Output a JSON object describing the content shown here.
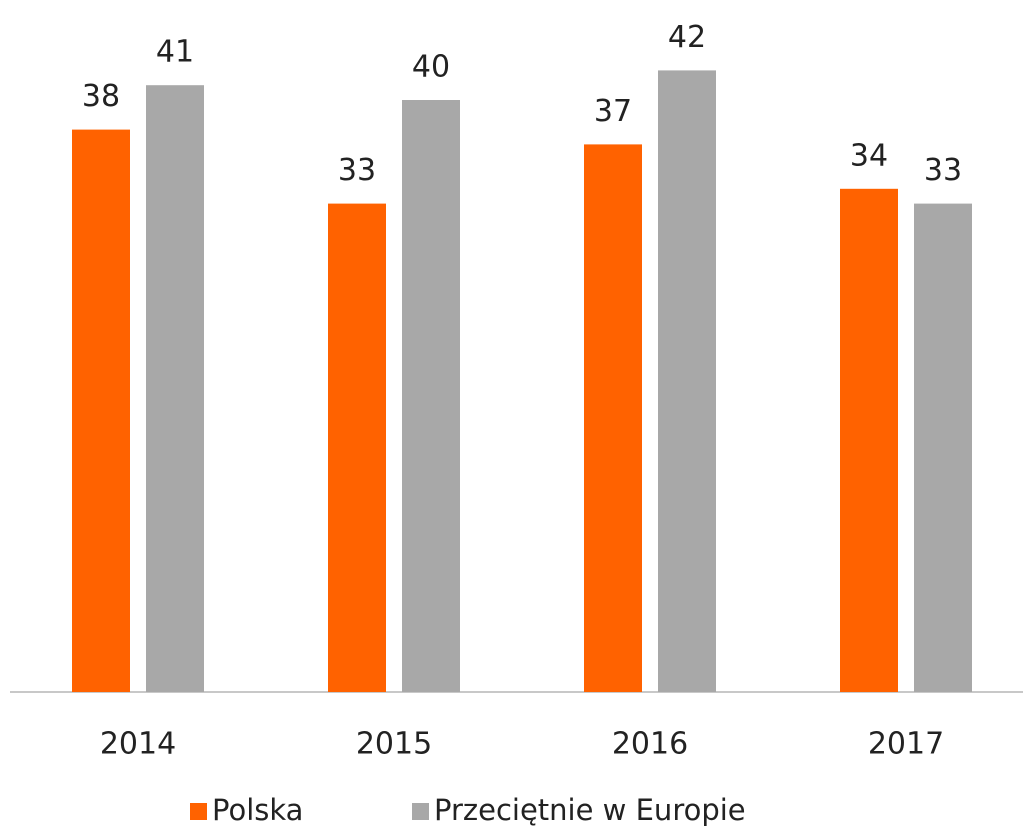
{
  "chart_data": {
    "type": "bar",
    "categories": [
      "2014",
      "2015",
      "2016",
      "2017"
    ],
    "series": [
      {
        "name": "Polska",
        "color": "#ff6200",
        "values": [
          38,
          33,
          37,
          34
        ]
      },
      {
        "name": "Przeciętnie w Europie",
        "color": "#a8a8a8",
        "values": [
          41,
          40,
          42,
          33
        ]
      }
    ],
    "legend": "bottom"
  }
}
